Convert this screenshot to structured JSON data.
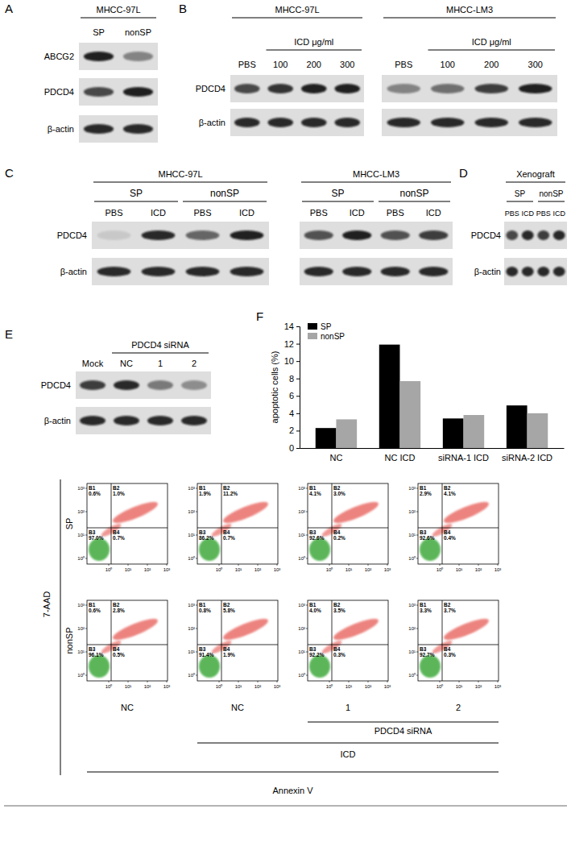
{
  "panel_letters": [
    "A",
    "B",
    "C",
    "D",
    "E",
    "F"
  ],
  "blots": [
    {
      "row_labels": [
        "ABCG2",
        "PDCD4",
        "β-actin"
      ],
      "groups": [
        {
          "title": "MHCC-97L",
          "lanes": [
            "SP",
            "nonSP"
          ],
          "bands": [
            [
              0.95,
              0.45
            ],
            [
              0.75,
              0.95
            ],
            [
              0.9,
              0.9
            ]
          ]
        }
      ]
    },
    {
      "row_labels": [
        "PDCD4",
        "β-actin"
      ],
      "groups": [
        {
          "title": "MHCC-97L",
          "span_label": "ICD μg/ml",
          "lanes": [
            "PBS",
            "100",
            "200",
            "300"
          ],
          "bands": [
            [
              0.75,
              0.85,
              0.95,
              0.95
            ],
            [
              0.9,
              0.9,
              0.9,
              0.9
            ]
          ]
        },
        {
          "title": "MHCC-LM3",
          "span_label": "ICD μg/ml",
          "lanes": [
            "PBS",
            "100",
            "200",
            "300"
          ],
          "bands": [
            [
              0.45,
              0.55,
              0.8,
              0.95
            ],
            [
              0.9,
              0.9,
              0.9,
              0.9
            ]
          ]
        }
      ]
    },
    {
      "row_labels": [
        "PDCD4",
        "β-actin"
      ],
      "groups": [
        {
          "title": "MHCC-97L",
          "subgroups": [
            "SP",
            "nonSP"
          ],
          "lanes": [
            "PBS",
            "ICD",
            "PBS",
            "ICD"
          ],
          "bands": [
            [
              0.1,
              0.9,
              0.6,
              0.95
            ],
            [
              0.9,
              0.9,
              0.9,
              0.9
            ]
          ]
        },
        {
          "title": "MHCC-LM3",
          "subgroups": [
            "SP",
            "nonSP"
          ],
          "lanes": [
            "PBS",
            "ICD",
            "PBS",
            "ICD"
          ],
          "bands": [
            [
              0.7,
              0.95,
              0.7,
              0.8
            ],
            [
              0.9,
              0.9,
              0.9,
              0.9
            ]
          ]
        }
      ]
    },
    {
      "row_labels": [
        "PDCD4",
        "β-actin"
      ],
      "groups": [
        {
          "title": "Xenograft",
          "subgroups": [
            "SP",
            "nonSP"
          ],
          "lanes": [
            "PBS",
            "ICD",
            "PBS",
            "ICD"
          ],
          "bands": [
            [
              0.75,
              0.9,
              0.8,
              0.9
            ],
            [
              0.9,
              0.9,
              0.9,
              0.9
            ]
          ]
        }
      ]
    },
    {
      "row_labels": [
        "PDCD4",
        "β-actin"
      ],
      "groups": [
        {
          "span_label": "PDCD4 siRNA",
          "lanes": [
            "Mock",
            "NC",
            "1",
            "2"
          ],
          "bands": [
            [
              0.8,
              0.9,
              0.5,
              0.4
            ],
            [
              0.9,
              0.9,
              0.9,
              0.9
            ]
          ]
        }
      ]
    }
  ],
  "chart_data": {
    "type": "bar",
    "categories": [
      "NC",
      "NC ICD",
      "siRNA-1 ICD",
      "siRNA-2 ICD"
    ],
    "series": [
      {
        "name": "SP",
        "color": "#000000",
        "values": [
          2.3,
          11.9,
          3.4,
          4.9
        ]
      },
      {
        "name": "nonSP",
        "color": "#a6a6a6",
        "values": [
          3.3,
          7.7,
          3.8,
          4.0
        ]
      }
    ],
    "y_label": "apoptotic cells (%)",
    "ylim": [
      0,
      14
    ],
    "yticks": [
      0,
      2,
      4,
      6,
      8,
      10,
      12,
      14
    ],
    "legend": "upper left"
  },
  "flow": {
    "y_label": "7-AAD",
    "x_label": "Annexin V",
    "row_labels": [
      "SP",
      "nonSP"
    ],
    "column_labels": [
      "NC",
      "NC",
      "1",
      "2"
    ],
    "bracket_labels": [
      "PDCD4 siRNA",
      "ICD"
    ],
    "tick_labels": [
      "10⁰",
      "10¹",
      "10²",
      "10³"
    ],
    "gates": [
      "B1",
      "B2",
      "B3",
      "B4"
    ],
    "plots": [
      [
        [
          "0.6%",
          "1.0%",
          "97.0%",
          "0.7%"
        ],
        [
          "1.9%",
          "11.2%",
          "86.2%",
          "0.7%"
        ],
        [
          "4.1%",
          "3.0%",
          "92.6%",
          "0.2%"
        ],
        [
          "2.9%",
          "4.1%",
          "92.6%",
          "0.4%"
        ]
      ],
      [
        [
          "0.6%",
          "2.8%",
          "96.1%",
          "0.5%"
        ],
        [
          "0.8%",
          "5.8%",
          "91.4%",
          "1.9%"
        ],
        [
          "4.0%",
          "3.5%",
          "92.2%",
          "0.3%"
        ],
        [
          "3.3%",
          "3.7%",
          "92.7%",
          "0.3%"
        ]
      ]
    ]
  }
}
